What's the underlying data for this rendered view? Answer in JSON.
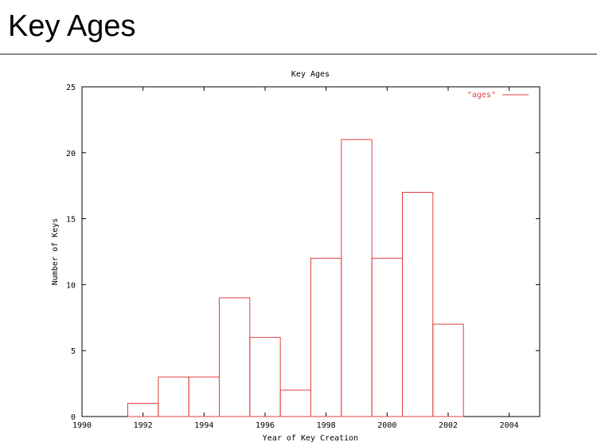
{
  "page": {
    "title": "Key Ages"
  },
  "chart_data": {
    "type": "bar",
    "title": "Key Ages",
    "xlabel": "Year of Key Creation",
    "ylabel": "Number of Keys",
    "xlim": [
      1990,
      2005
    ],
    "ylim": [
      0,
      25
    ],
    "xticks": [
      1990,
      1992,
      1994,
      1996,
      1998,
      2000,
      2002,
      2004
    ],
    "yticks": [
      0,
      5,
      10,
      15,
      20,
      25
    ],
    "bin_width": 1,
    "x": [
      1992,
      1993,
      1994,
      1995,
      1996,
      1997,
      1998,
      1999,
      2000,
      2001,
      2002
    ],
    "series": [
      {
        "name": "\"ages\"",
        "color": "#e04040",
        "values": [
          1,
          3,
          3,
          9,
          6,
          2,
          12,
          21,
          12,
          17,
          7
        ]
      }
    ],
    "legend_position": "top-right",
    "grid": false
  }
}
